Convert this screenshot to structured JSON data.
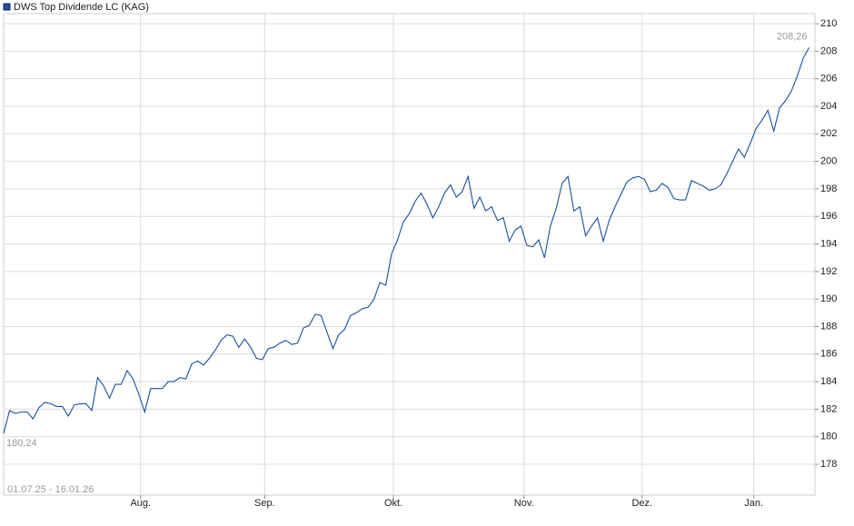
{
  "chart_data": {
    "type": "line",
    "legend": "DWS Top Dividende LC (KAG)",
    "start_label": "180,24",
    "end_label": "208,26",
    "range_label": "01.07.25 - 16.01.26",
    "color": "#1a4f9c",
    "grid": true,
    "xlim": [
      0,
      138
    ],
    "ylim": [
      175.76,
      210.73
    ],
    "yticks": [
      178,
      180,
      182,
      184,
      186,
      188,
      190,
      192,
      194,
      196,
      198,
      200,
      202,
      204,
      206,
      208,
      210
    ],
    "xticks": [
      {
        "value": 23.3,
        "label": "Aug."
      },
      {
        "value": 44.4,
        "label": "Sep."
      },
      {
        "value": 66.3,
        "label": "Okt."
      },
      {
        "value": 88.5,
        "label": "Nov."
      },
      {
        "value": 108.6,
        "label": "Dez."
      },
      {
        "value": 127.6,
        "label": "Jan."
      }
    ],
    "values": [
      180.24,
      181.9,
      181.7,
      181.8,
      181.8,
      181.3,
      182.1,
      182.5,
      182.4,
      182.2,
      182.2,
      181.5,
      182.3,
      182.4,
      182.4,
      181.9,
      184.3,
      183.7,
      182.8,
      183.8,
      183.8,
      184.8,
      184.2,
      183.1,
      181.8,
      183.5,
      183.5,
      183.5,
      184.0,
      184.0,
      184.3,
      184.2,
      185.3,
      185.5,
      185.2,
      185.7,
      186.3,
      187.0,
      187.4,
      187.3,
      186.5,
      187.1,
      186.5,
      185.7,
      185.6,
      186.4,
      186.5,
      186.8,
      187.0,
      186.7,
      186.8,
      187.9,
      188.1,
      188.9,
      188.8,
      187.6,
      186.4,
      187.4,
      187.8,
      188.8,
      189.0,
      189.3,
      189.4,
      190.0,
      191.2,
      191.0,
      193.3,
      194.3,
      195.6,
      196.2,
      197.1,
      197.7,
      196.9,
      195.9,
      196.7,
      197.7,
      198.3,
      197.4,
      197.8,
      198.9,
      196.6,
      197.4,
      196.4,
      196.7,
      195.7,
      195.9,
      194.2,
      195.0,
      195.3,
      193.9,
      193.8,
      194.3,
      193.0,
      195.3,
      196.6,
      198.4,
      198.9,
      196.4,
      196.7,
      194.6,
      195.3,
      195.9,
      194.2,
      195.7,
      196.7,
      197.6,
      198.5,
      198.8,
      198.9,
      198.7,
      197.8,
      197.9,
      198.4,
      198.1,
      197.3,
      197.2,
      197.2,
      198.6,
      198.4,
      198.2,
      197.9,
      198.0,
      198.3,
      199.1,
      200.0,
      200.9,
      200.3,
      201.3,
      202.4,
      203.0,
      203.7,
      202.2,
      203.9,
      204.4,
      205.1,
      206.2,
      207.5,
      208.26
    ]
  }
}
